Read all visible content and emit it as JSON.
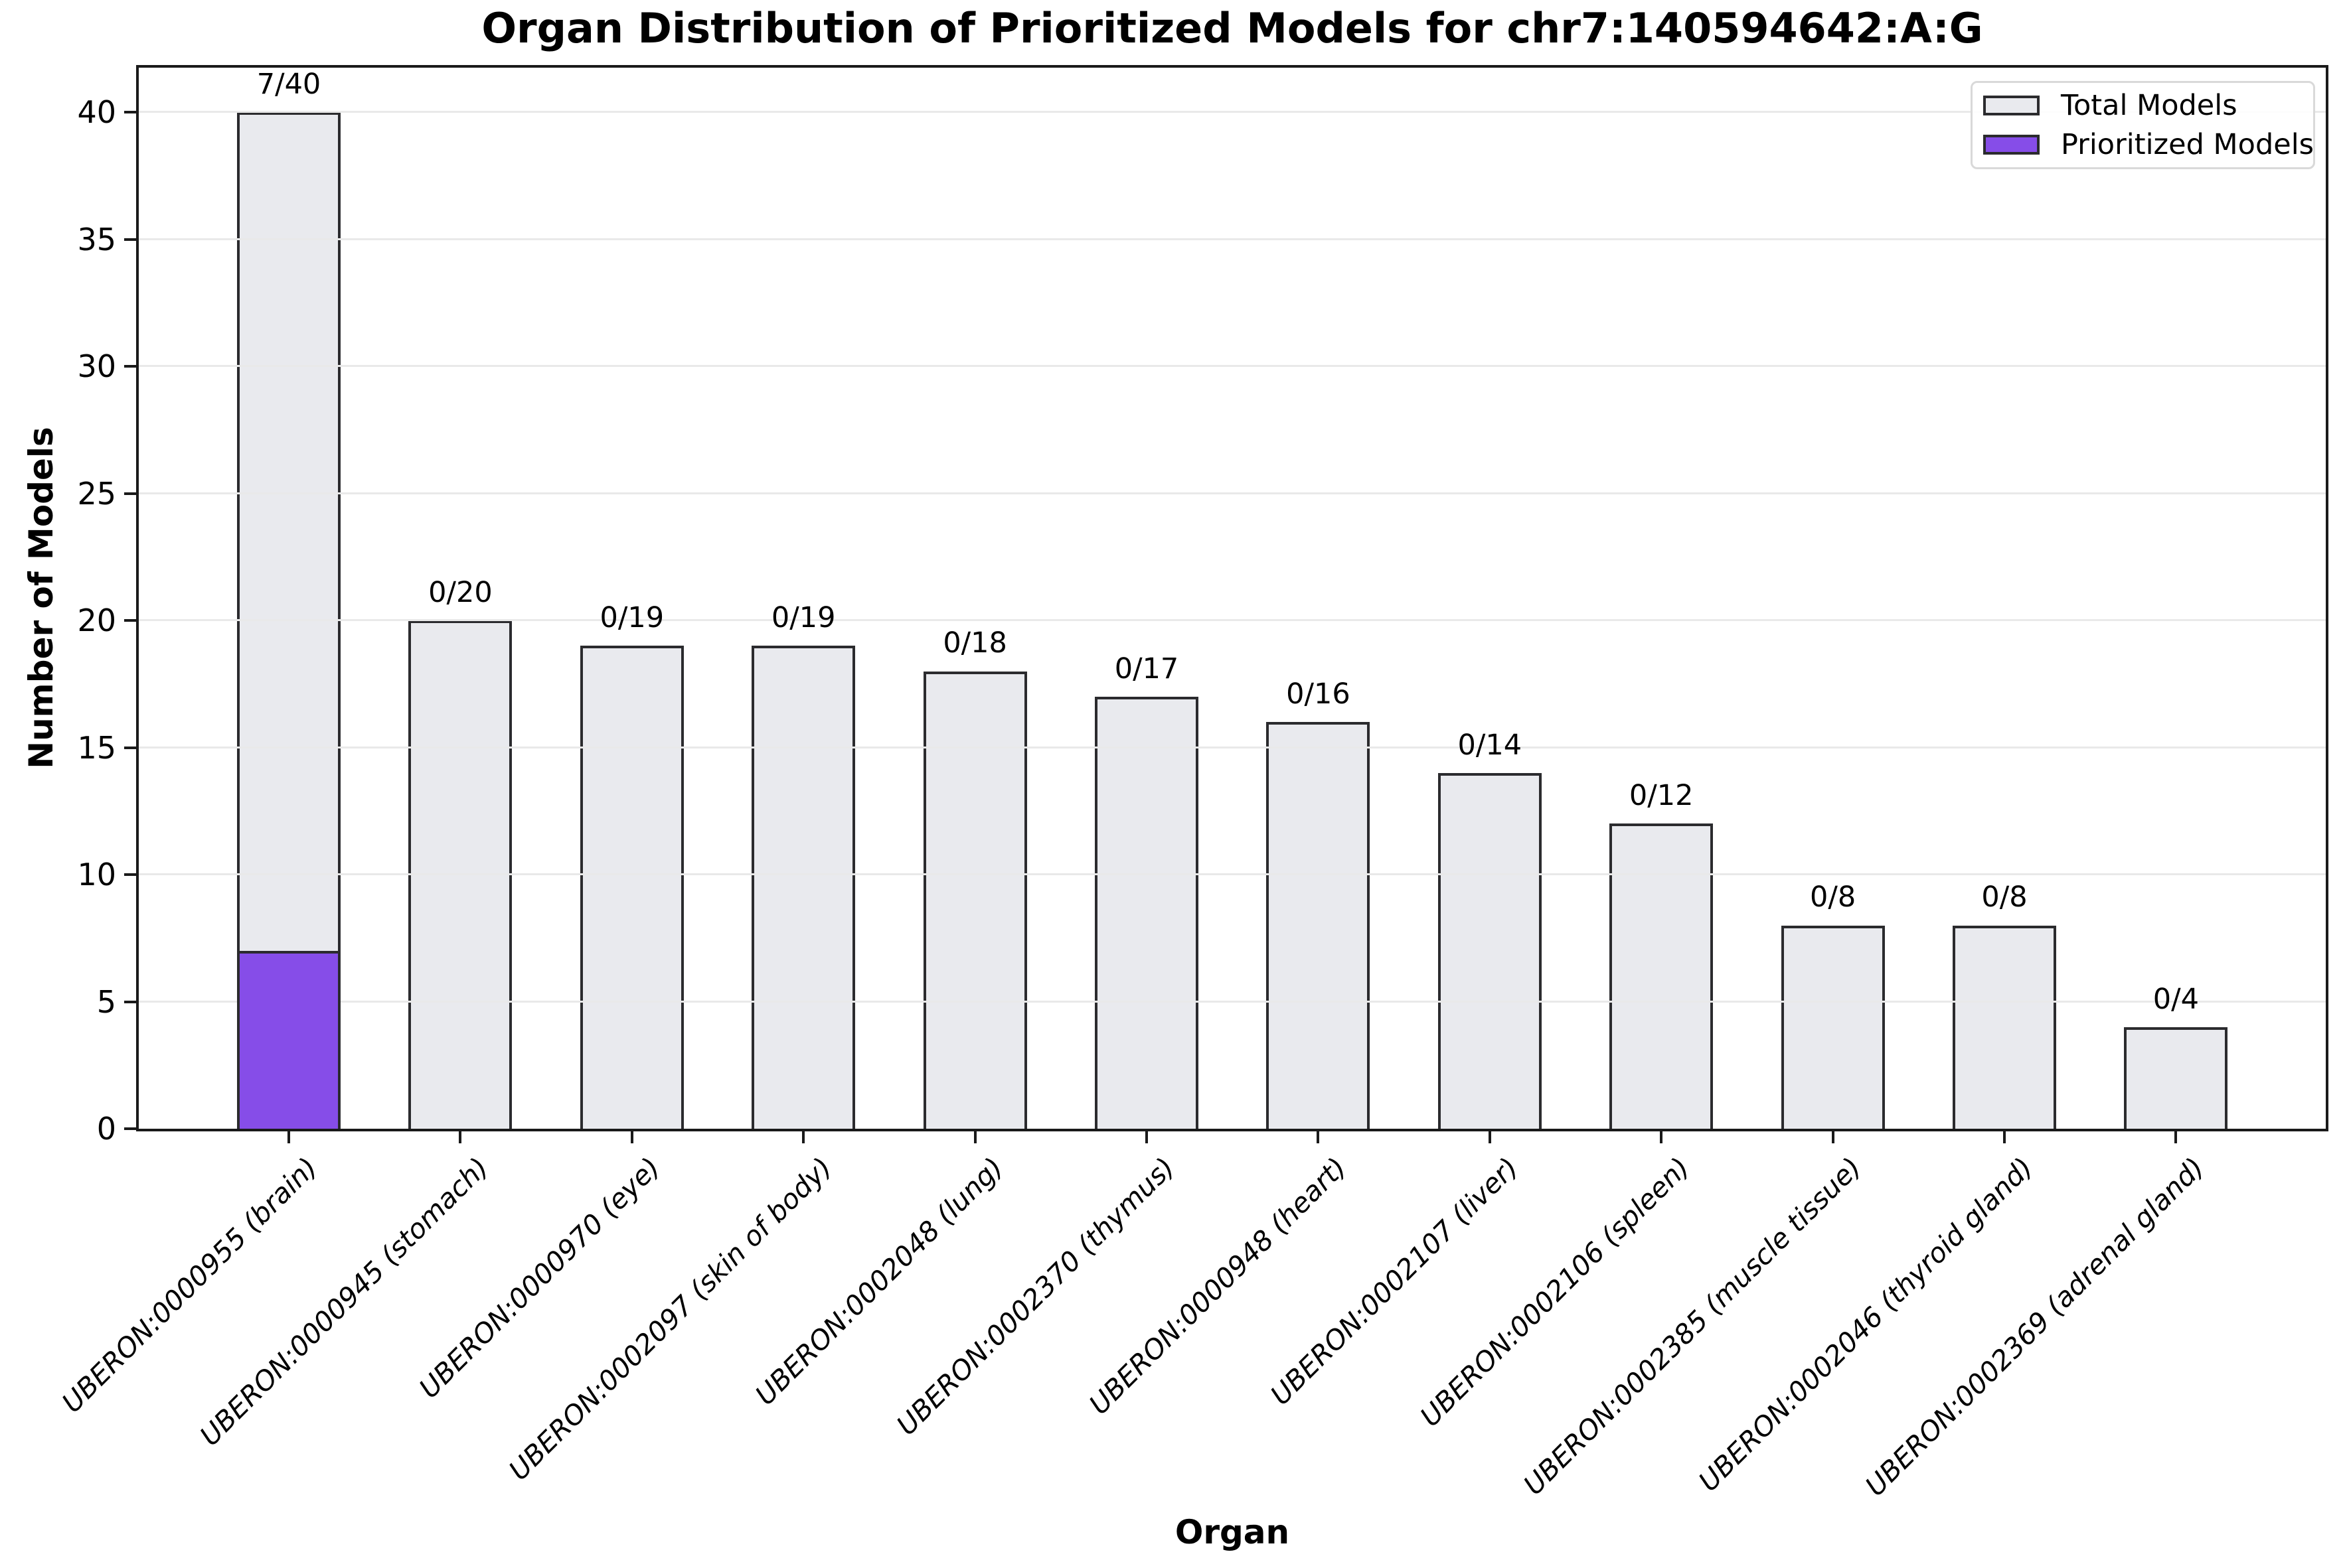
{
  "chart_data": {
    "type": "bar",
    "title": "Organ Distribution of Prioritized Models for chr7:140594642:A:G",
    "xlabel": "Organ",
    "ylabel": "Number of Models",
    "categories": [
      "UBERON:0000955 (brain)",
      "UBERON:0000945 (stomach)",
      "UBERON:0000970 (eye)",
      "UBERON:0002097 (skin of body)",
      "UBERON:0002048 (lung)",
      "UBERON:0002370 (thymus)",
      "UBERON:0000948 (heart)",
      "UBERON:0002107 (liver)",
      "UBERON:0002106 (spleen)",
      "UBERON:0002385 (muscle tissue)",
      "UBERON:0002046 (thyroid gland)",
      "UBERON:0002369 (adrenal gland)"
    ],
    "series": [
      {
        "name": "Total Models",
        "color": "#e9eaee",
        "values": [
          40,
          20,
          19,
          19,
          18,
          17,
          16,
          14,
          12,
          8,
          8,
          4
        ]
      },
      {
        "name": "Prioritized Models",
        "color": "#864de8",
        "values": [
          7,
          0,
          0,
          0,
          0,
          0,
          0,
          0,
          0,
          0,
          0,
          0
        ]
      }
    ],
    "bar_labels": [
      "7/40",
      "0/20",
      "0/19",
      "0/19",
      "0/18",
      "0/17",
      "0/16",
      "0/14",
      "0/12",
      "0/8",
      "0/8",
      "0/4"
    ],
    "yticks": [
      0,
      5,
      10,
      15,
      20,
      25,
      30,
      35,
      40
    ],
    "ylim": [
      0,
      41.9
    ],
    "grid": true,
    "grid_axis": "y",
    "legend_position": "upper right",
    "edge_color": "#2b2b2e"
  }
}
